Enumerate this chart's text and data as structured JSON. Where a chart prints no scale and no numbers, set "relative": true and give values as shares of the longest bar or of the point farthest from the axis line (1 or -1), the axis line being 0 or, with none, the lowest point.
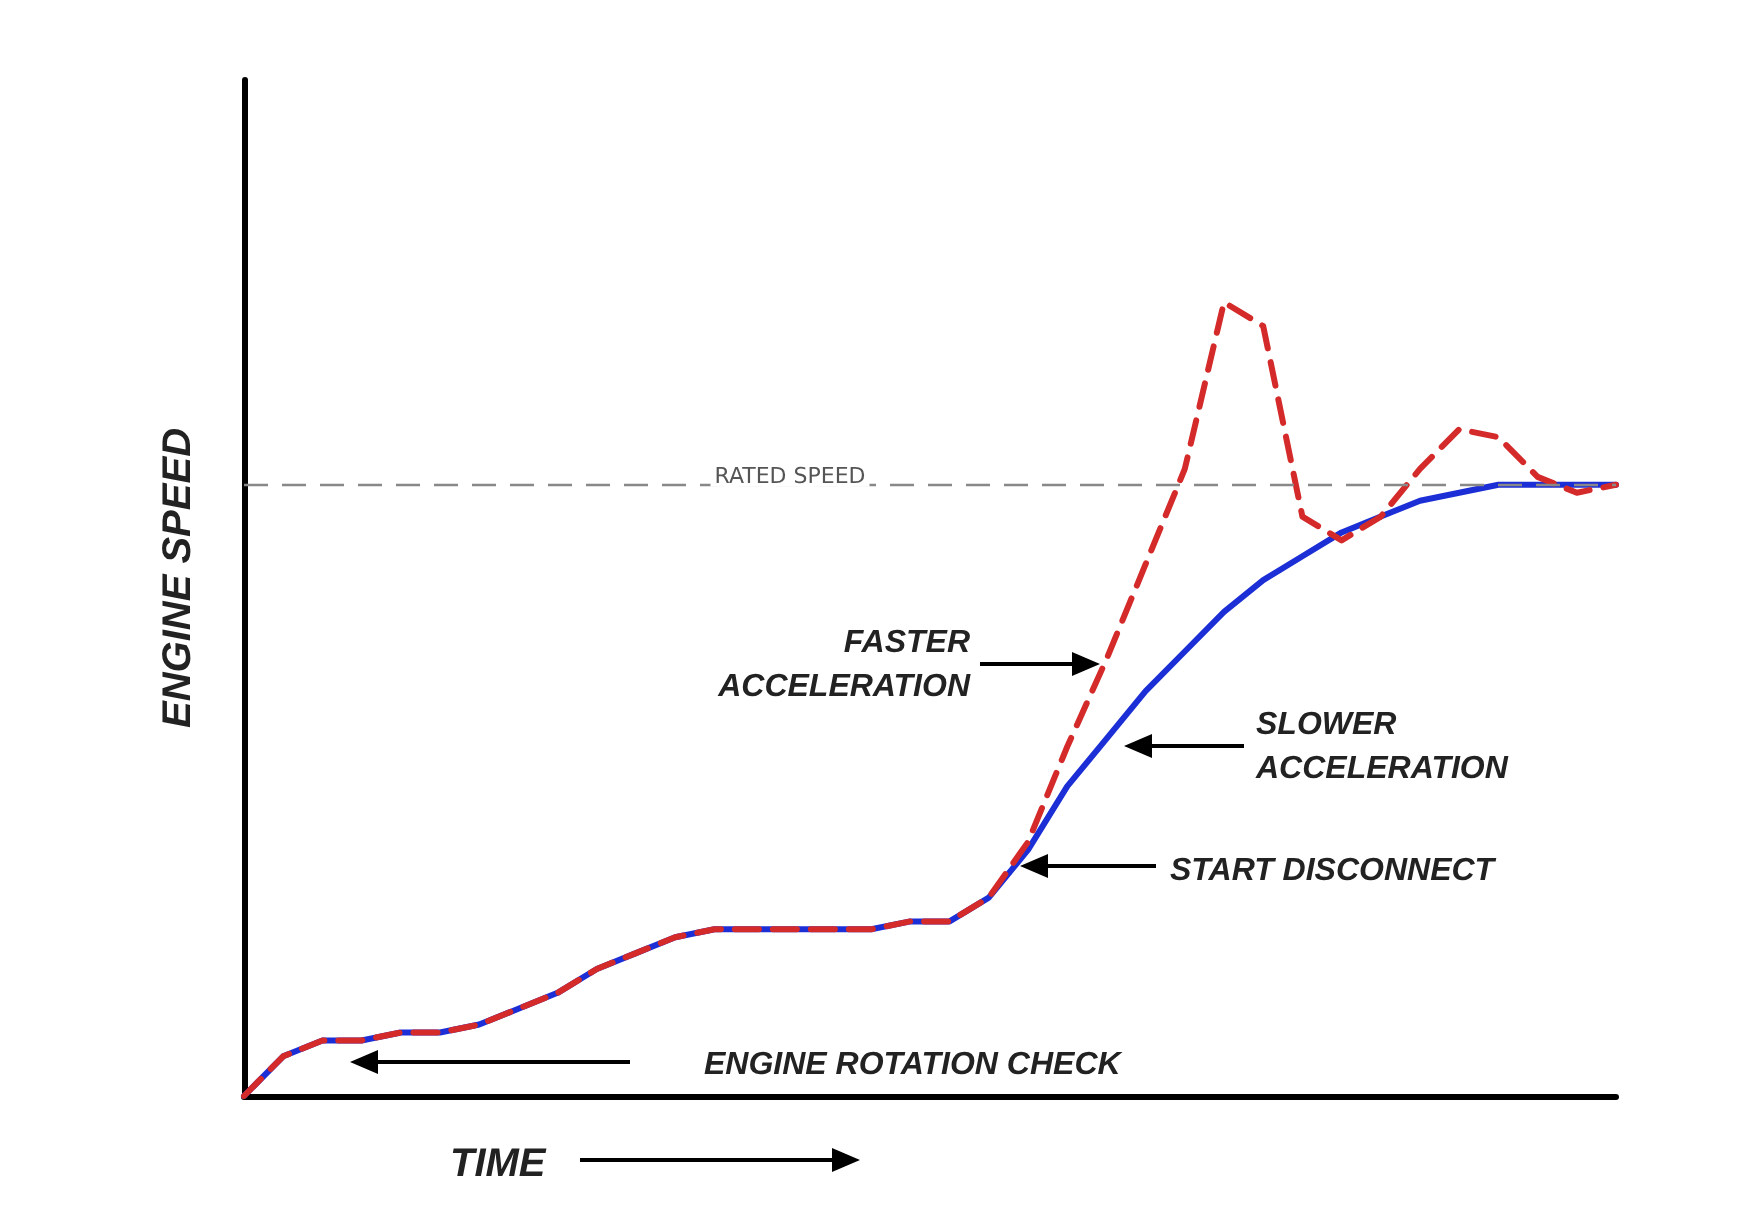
{
  "chart_data": {
    "type": "line",
    "relative": true,
    "xlabel": "TIME",
    "ylabel": "ENGINE SPEED",
    "marker": "none",
    "grid": false,
    "categories": [
      null,
      null,
      null,
      null,
      null,
      null,
      null,
      null,
      null,
      null,
      null,
      null,
      null,
      null,
      null,
      null,
      null,
      null,
      null,
      null,
      null,
      null,
      null,
      null,
      null,
      null,
      null,
      null,
      null,
      null,
      null,
      null,
      null,
      null,
      null,
      null
    ],
    "series": [
      {
        "color": "#1c2fd6",
        "line_style": "solid",
        "values": [
          0,
          0.05,
          0.07,
          0.07,
          0.08,
          0.08,
          0.09,
          0.11,
          0.13,
          0.16,
          0.18,
          0.2,
          0.21,
          0.21,
          0.21,
          0.21,
          0.21,
          0.22,
          0.22,
          0.25,
          0.31,
          0.39,
          0.45,
          0.51,
          0.56,
          0.61,
          0.65,
          0.68,
          0.71,
          0.73,
          0.75,
          0.76,
          0.77,
          0.77,
          0.77,
          0.77
        ]
      },
      {
        "color": "#d42a2a",
        "line_style": "dashed",
        "values": [
          0,
          0.05,
          0.07,
          0.07,
          0.08,
          0.08,
          0.09,
          0.11,
          0.13,
          0.16,
          0.18,
          0.2,
          0.21,
          0.21,
          0.21,
          0.21,
          0.21,
          0.22,
          0.22,
          0.25,
          0.32,
          0.44,
          0.55,
          0.67,
          0.79,
          1,
          0.97,
          0.73,
          0.7,
          0.73,
          0.79,
          0.84,
          0.83,
          0.78,
          0.76,
          0.77
        ]
      }
    ],
    "ref_lines": [
      {
        "axis": "y",
        "value": 0.77,
        "label": "RATED SPEED",
        "color": "#888888",
        "line_style": "dashed"
      }
    ],
    "annotations": [
      "FASTER ACCELERATION",
      "SLOWER ACCELERATION",
      "START DISCONNECT",
      "ENGINE ROTATION CHECK"
    ]
  }
}
